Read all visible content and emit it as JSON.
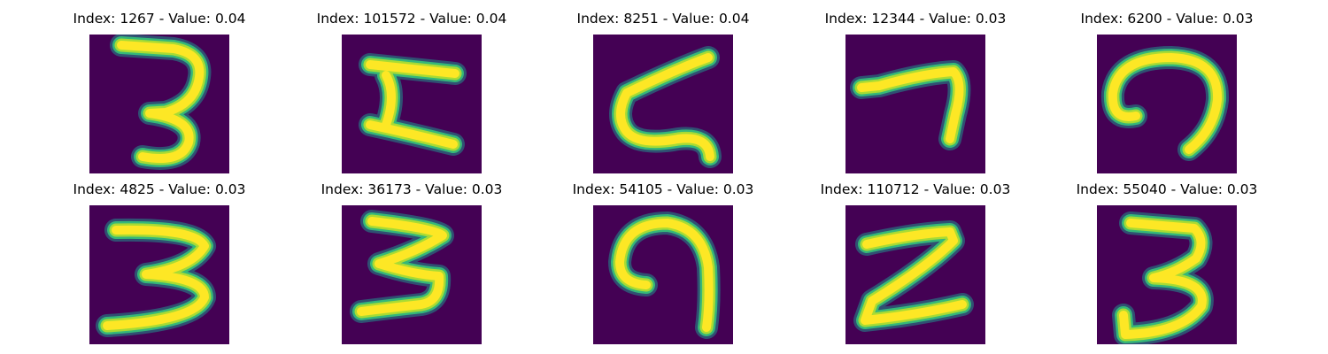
{
  "panels": [
    {
      "title": "Index: 1267 - Value: 0.04",
      "digit": "3"
    },
    {
      "title": "Index: 101572 - Value: 0.04",
      "digit": "3"
    },
    {
      "title": "Index: 8251 - Value: 0.04",
      "digit": "3"
    },
    {
      "title": "Index: 12344 - Value: 0.03",
      "digit": "7"
    },
    {
      "title": "Index: 6200 - Value: 0.03",
      "digit": "9"
    },
    {
      "title": "Index: 4825 - Value: 0.03",
      "digit": "3"
    },
    {
      "title": "Index: 36173 - Value: 0.03",
      "digit": "3"
    },
    {
      "title": "Index: 54105 - Value: 0.03",
      "digit": "9"
    },
    {
      "title": "Index: 110712 - Value: 0.03",
      "digit": "2"
    },
    {
      "title": "Index: 55040 - Value: 0.03",
      "digit": "3"
    }
  ],
  "colors": {
    "background": "#440154",
    "stroke_core": "#fde725",
    "stroke_mid": "#a8db34",
    "stroke_edge": "#35b779",
    "stroke_halo": "#21918c"
  }
}
